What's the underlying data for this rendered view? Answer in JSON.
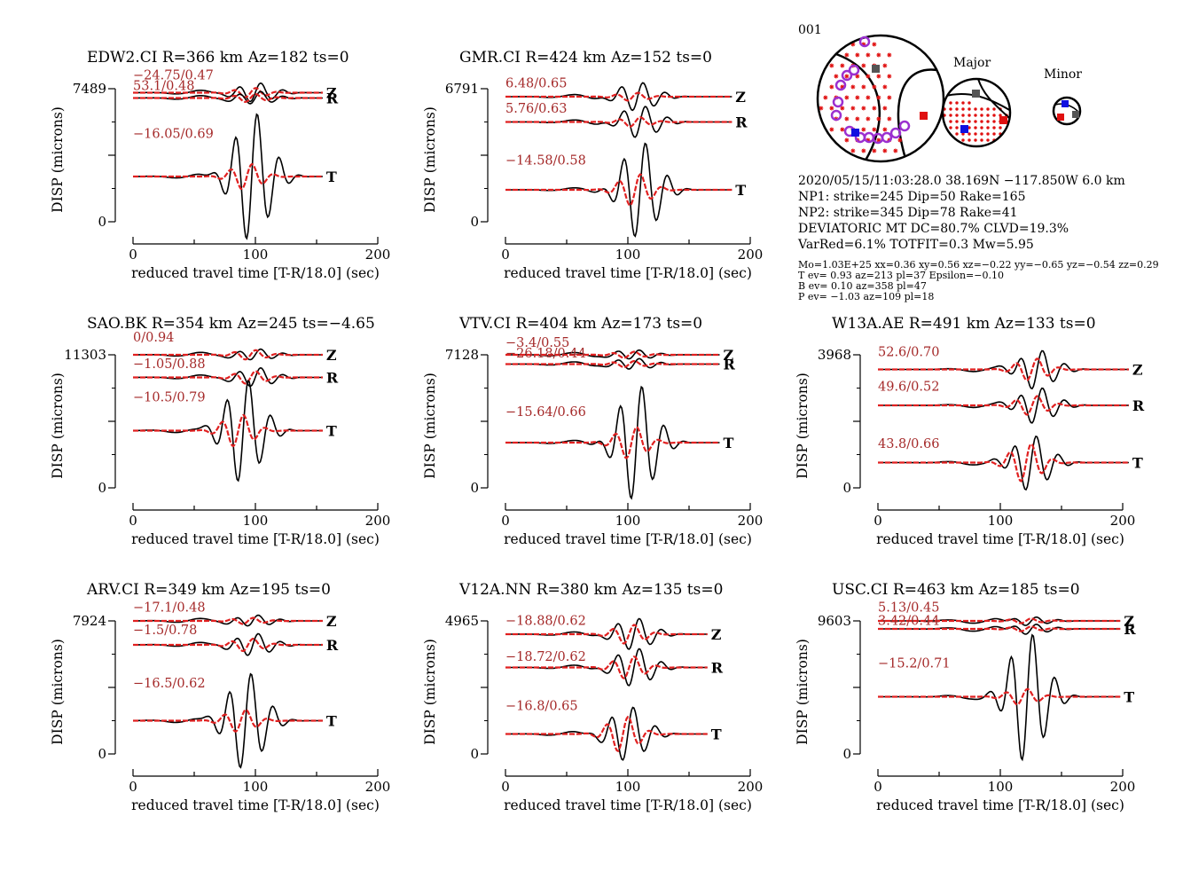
{
  "panels": [
    {
      "title": "EDW2.CI R=366 km Az=182 ts=0",
      "ymax_label": "7489",
      "traces": [
        {
          "comp": "Z",
          "ann": "−24.75/0.47",
          "dur": 155,
          "peak": 100,
          "amp_obs": 0.6,
          "amp_syn": 0.3
        },
        {
          "comp": "R",
          "ann": "53.1/0.48",
          "dur": 155,
          "peak": 100,
          "amp_obs": 0.4,
          "amp_syn": 0.25
        },
        {
          "comp": "T",
          "ann": "−16.05/0.69",
          "dur": 155,
          "peak": 97,
          "amp_obs": 4.0,
          "amp_syn": 0.8
        }
      ]
    },
    {
      "title": "GMR.CI R=424 km Az=152 ts=0",
      "ymax_label": "6791",
      "traces": [
        {
          "comp": "Z",
          "ann": "6.48/0.65",
          "dur": 185,
          "peak": 108,
          "amp_obs": 0.9,
          "amp_syn": 0.25
        },
        {
          "comp": "R",
          "ann": "5.76/0.63",
          "dur": 185,
          "peak": 110,
          "amp_obs": 1.0,
          "amp_syn": 0.3
        },
        {
          "comp": "T",
          "ann": "−14.58/0.58",
          "dur": 185,
          "peak": 110,
          "amp_obs": 3.0,
          "amp_syn": 1.0
        }
      ]
    },
    {
      "title": "SAO.BK R=354 km Az=245 ts=−4.65",
      "ymax_label": "11303",
      "traces": [
        {
          "comp": "Z",
          "ann": "0/0.94",
          "dur": 155,
          "peak": 100,
          "amp_obs": 0.35,
          "amp_syn": 0.3
        },
        {
          "comp": "R",
          "ann": "−1.05/0.88",
          "dur": 155,
          "peak": 100,
          "amp_obs": 0.6,
          "amp_syn": 0.4
        },
        {
          "comp": "T",
          "ann": "−10.5/0.79",
          "dur": 155,
          "peak": 90,
          "amp_obs": 3.2,
          "amp_syn": 1.0
        }
      ]
    },
    {
      "title": "VTV.CI R=404 km Az=173 ts=0",
      "ymax_label": "7128",
      "traces": [
        {
          "comp": "Z",
          "ann": "−3.4/0.55",
          "dur": 175,
          "peak": 105,
          "amp_obs": 0.3,
          "amp_syn": 0.2
        },
        {
          "comp": "R",
          "ann": "−26.18/0.44",
          "dur": 175,
          "peak": 105,
          "amp_obs": 0.35,
          "amp_syn": 0.2
        },
        {
          "comp": "T",
          "ann": "−15.64/0.66",
          "dur": 175,
          "peak": 107,
          "amp_obs": 3.6,
          "amp_syn": 1.0
        }
      ]
    },
    {
      "title": "W13A.AE R=491 km Az=133 ts=0",
      "ymax_label": "3968",
      "traces": [
        {
          "comp": "Z",
          "ann": "52.6/0.70",
          "dur": 205,
          "peak": 130,
          "amp_obs": 1.2,
          "amp_syn": 0.7
        },
        {
          "comp": "R",
          "ann": "49.6/0.52",
          "dur": 205,
          "peak": 130,
          "amp_obs": 1.1,
          "amp_syn": 0.6
        },
        {
          "comp": "T",
          "ann": "43.8/0.66",
          "dur": 205,
          "peak": 125,
          "amp_obs": 1.7,
          "amp_syn": 1.2
        }
      ]
    },
    {
      "title": "ARV.CI R=349 km Az=195 ts=0",
      "ymax_label": "7924",
      "traces": [
        {
          "comp": "Z",
          "ann": "−17.1/0.48",
          "dur": 155,
          "peak": 98,
          "amp_obs": 0.35,
          "amp_syn": 0.2
        },
        {
          "comp": "R",
          "ann": "−1.5/0.78",
          "dur": 155,
          "peak": 98,
          "amp_obs": 0.7,
          "amp_syn": 0.4
        },
        {
          "comp": "T",
          "ann": "−16.5/0.62",
          "dur": 155,
          "peak": 92,
          "amp_obs": 3.0,
          "amp_syn": 0.7
        }
      ]
    },
    {
      "title": "V12A.NN R=380 km Az=135 ts=0",
      "ymax_label": "4965",
      "traces": [
        {
          "comp": "Z",
          "ann": "−18.88/0.62",
          "dur": 165,
          "peak": 105,
          "amp_obs": 1.0,
          "amp_syn": 0.6
        },
        {
          "comp": "R",
          "ann": "−18.72/0.62",
          "dur": 165,
          "peak": 105,
          "amp_obs": 1.2,
          "amp_syn": 0.7
        },
        {
          "comp": "T",
          "ann": "−16.8/0.65",
          "dur": 165,
          "peak": 100,
          "amp_obs": 1.7,
          "amp_syn": 1.1
        }
      ]
    },
    {
      "title": "USC.CI R=463 km Az=185 ts=0",
      "ymax_label": "9603",
      "traces": [
        {
          "comp": "Z",
          "ann": "5.13/0.45",
          "dur": 198,
          "peak": 125,
          "amp_obs": 0.25,
          "amp_syn": 0.15
        },
        {
          "comp": "R",
          "ann": "3.42/0.44",
          "dur": 198,
          "peak": 125,
          "amp_obs": 0.3,
          "amp_syn": 0.15
        },
        {
          "comp": "T",
          "ann": "−15.2/0.71",
          "dur": 198,
          "peak": 122,
          "amp_obs": 4.0,
          "amp_syn": 0.5
        }
      ]
    }
  ],
  "axes": {
    "xlabel": "reduced travel time [T-R/18.0] (sec)",
    "ylabel": "DISP (microns)",
    "xticks": [
      "0",
      "100",
      "200"
    ],
    "ymin_label": "0",
    "xlim": [
      0,
      200
    ]
  },
  "mechanism": {
    "id": "001",
    "major_label": "Major",
    "minor_label": "Minor",
    "lines": [
      "2020/05/15/11:03:28.0 38.169N −117.850W 6.0 km",
      "NP1: strike=245 Dip=50 Rake=165",
      "NP2: strike=345 Dip=78 Rake=41",
      "DEVIATORIC MT DC=80.7% CLVD=19.3%",
      "VarRed=6.1% TOTFIT=0.3 Mw=5.95"
    ],
    "small_lines": [
      "Mo=1.03E+25 xx=0.36 xy=0.56 xz=−0.22 yy=−0.65 yz=−0.54 zz=0.29",
      "T ev=  0.93 az=213 pl=37 Epsilon=−0.10",
      "B ev=  0.10 az=358 pl=47",
      "P ev= −1.03 az=109 pl=18"
    ]
  },
  "colors": {
    "observed": "#000000",
    "synthetic": "#e02020",
    "annotation": "#a52a2a",
    "purple": "#9b30d0",
    "blue": "#1010e0",
    "red_square": "#e01010",
    "gray_square": "#555555"
  },
  "chart_data": {
    "type": "line",
    "panels": "see panels[] for per-station traces; each trace has time shift/correlation annotation",
    "xlim": [
      0,
      200
    ]
  }
}
